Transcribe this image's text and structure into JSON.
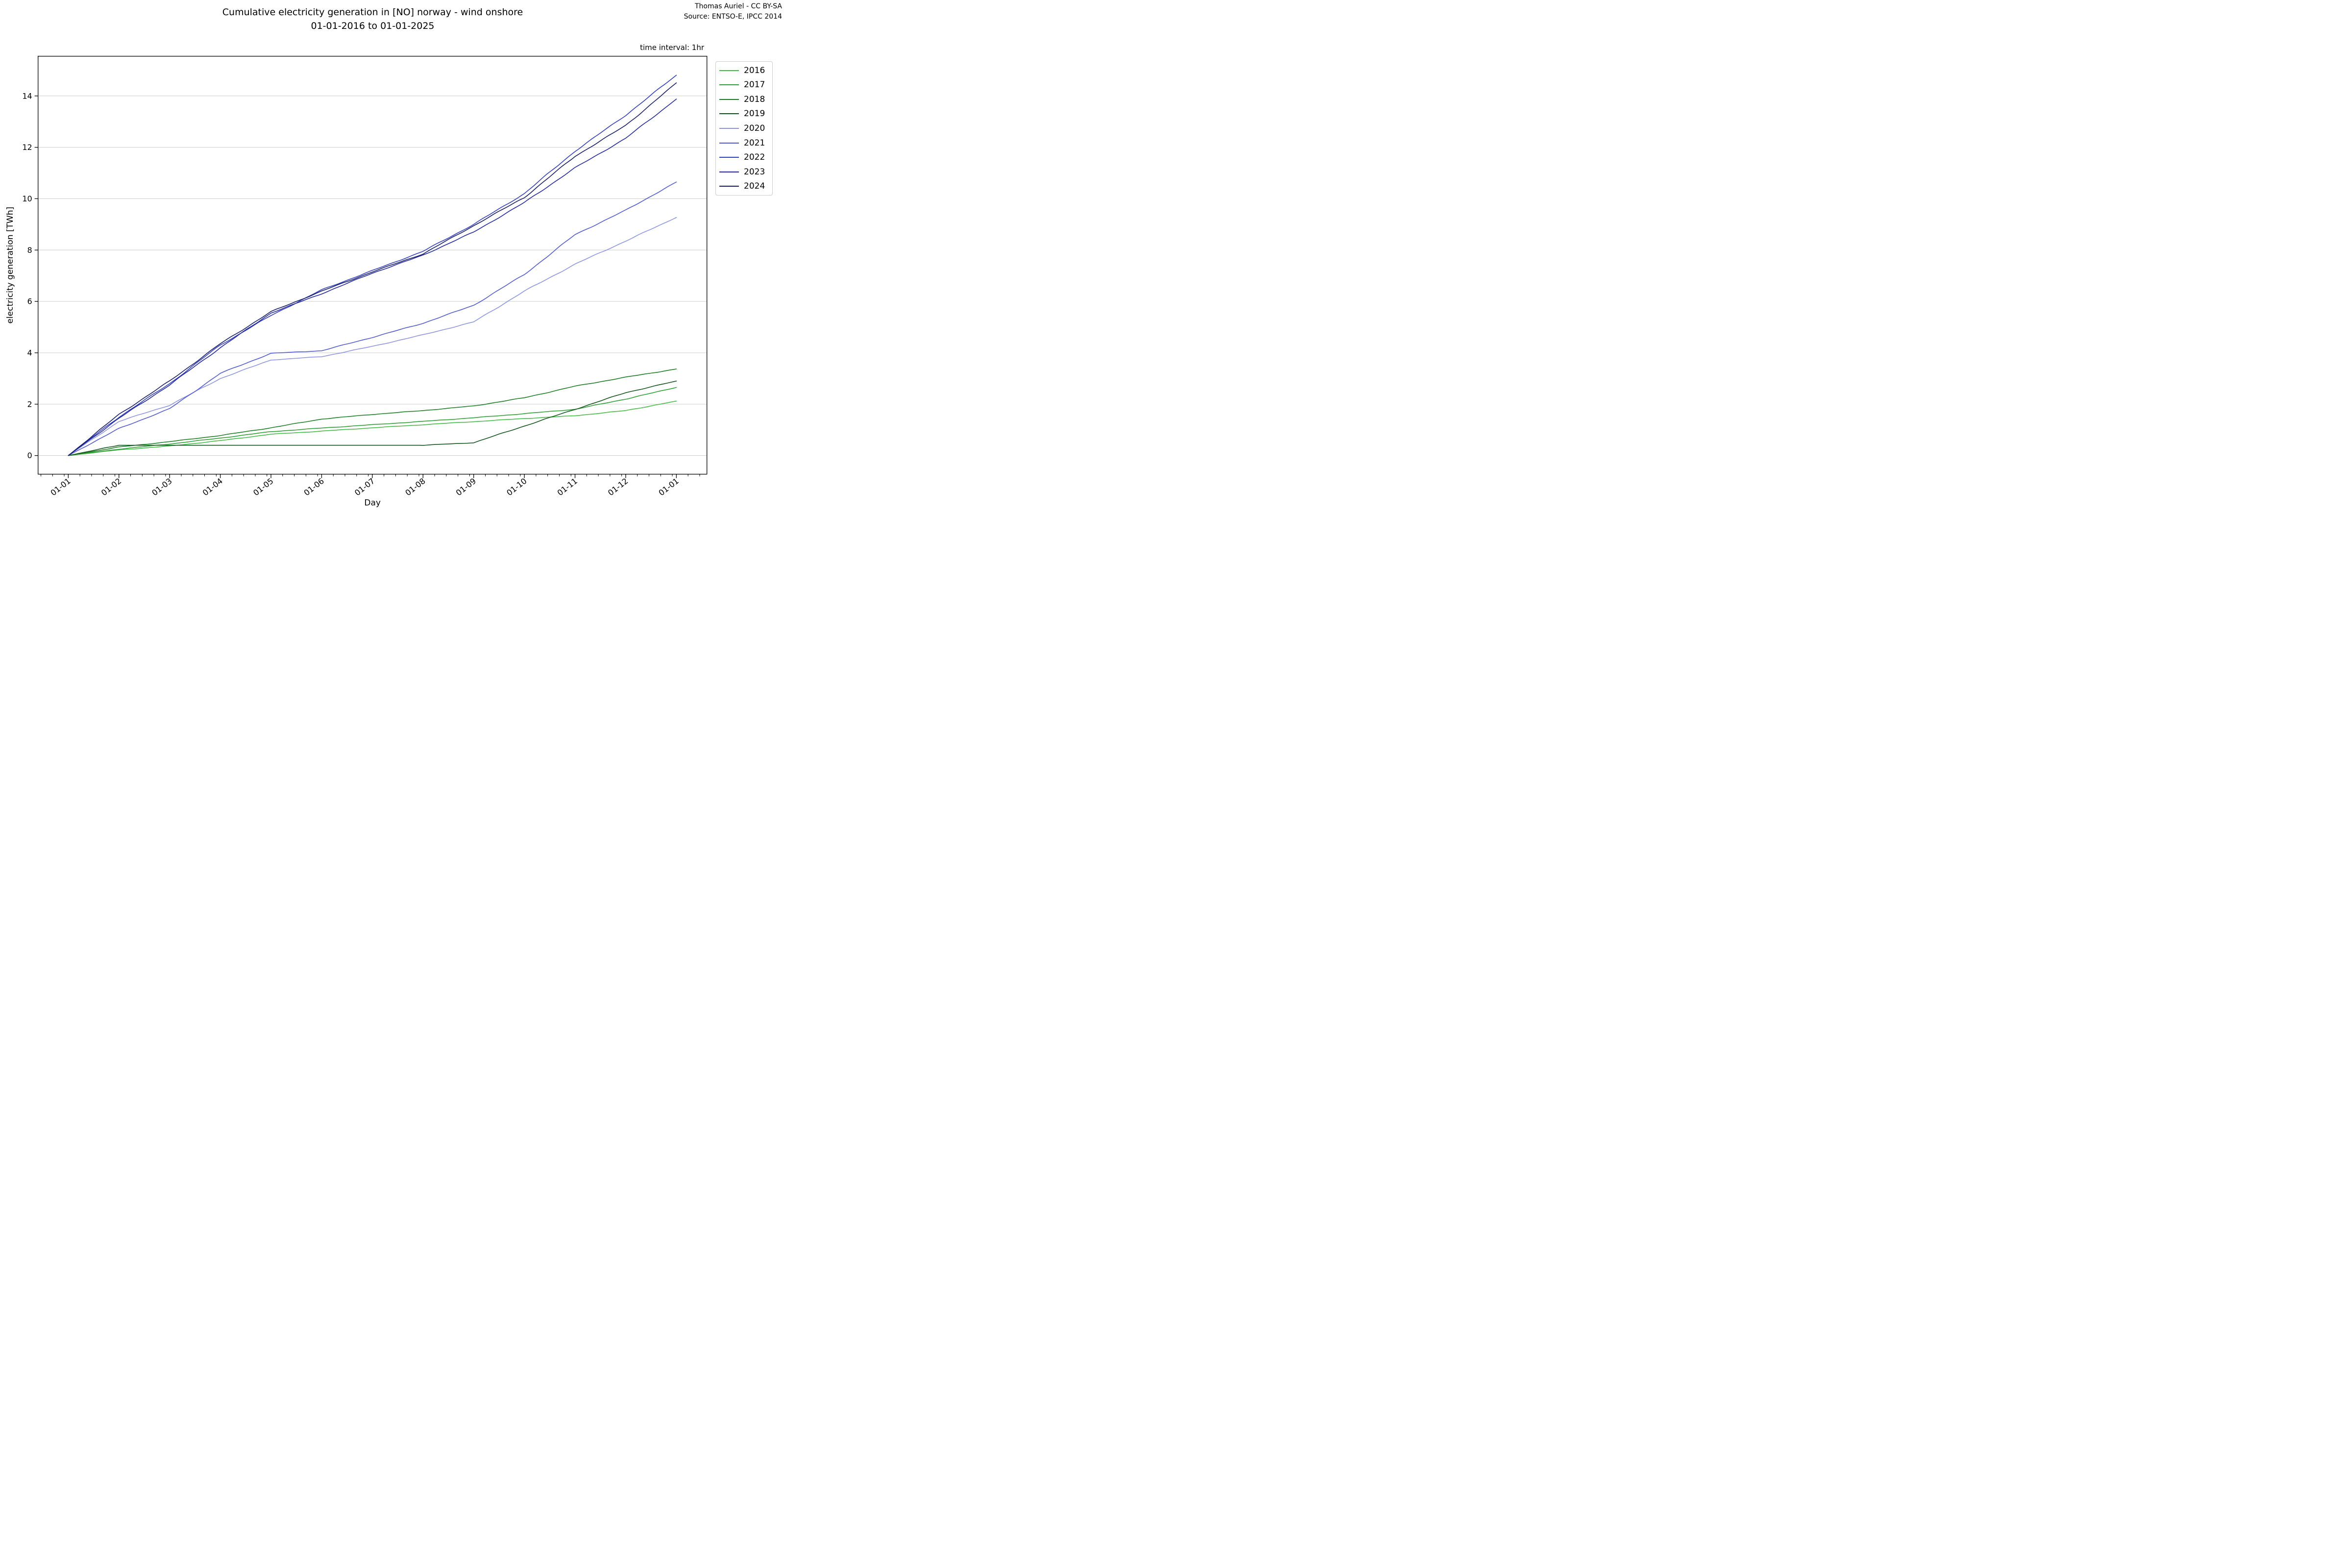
{
  "header": {
    "title_line1": "Cumulative electricity generation in [NO] norway - wind onshore",
    "title_line2": "01-01-2016 to 01-01-2025",
    "attribution_line1": "Thomas Auriel - CC BY-SA",
    "attribution_line2": "Source: ENTSO-E, IPCC 2014",
    "time_interval_note": "time interval: 1hr"
  },
  "chart_data": {
    "type": "line",
    "title": "Cumulative electricity generation in [NO] norway - wind onshore 01-01-2016 to 01-01-2025",
    "xlabel": "Day",
    "ylabel": "electricity generation [TWh]",
    "x_tick_labels": [
      "01-01",
      "01-02",
      "01-03",
      "01-04",
      "01-05",
      "01-06",
      "01-07",
      "01-08",
      "01-09",
      "01-10",
      "01-11",
      "01-12",
      "01-01"
    ],
    "y_ticks": [
      0,
      2,
      4,
      6,
      8,
      10,
      12,
      14
    ],
    "ylim": [
      -0.73,
      15.55
    ],
    "grid": "horizontal",
    "legend_position": "outside upper right",
    "sample_note": "monthly cumulative values in TWh at each x tick (Jan 1 of year through Jan 1 of next year)",
    "series": [
      {
        "name": "2016",
        "color": "#44bb44",
        "monthly_values_twh": [
          0,
          0.22,
          0.37,
          0.58,
          0.83,
          0.95,
          1.08,
          1.2,
          1.32,
          1.44,
          1.55,
          1.75,
          2.12
        ]
      },
      {
        "name": "2017",
        "color": "#2f9e36",
        "monthly_values_twh": [
          0,
          0.25,
          0.45,
          0.68,
          0.93,
          1.07,
          1.2,
          1.33,
          1.47,
          1.63,
          1.8,
          2.2,
          2.65
        ]
      },
      {
        "name": "2018",
        "color": "#1e7d26",
        "monthly_values_twh": [
          0,
          0.33,
          0.54,
          0.78,
          1.08,
          1.42,
          1.6,
          1.75,
          1.93,
          2.25,
          2.7,
          3.05,
          3.37
        ]
      },
      {
        "name": "2019",
        "color": "#14541c",
        "monthly_values_twh": [
          0,
          0.4,
          0.4,
          0.4,
          0.4,
          0.4,
          0.4,
          0.4,
          0.5,
          1.15,
          1.8,
          2.45,
          2.9
        ]
      },
      {
        "name": "2020",
        "color": "#8d96dd",
        "monthly_values_twh": [
          0,
          1.33,
          1.96,
          3.0,
          3.72,
          3.85,
          4.25,
          4.7,
          5.2,
          6.4,
          7.45,
          8.35,
          9.27
        ]
      },
      {
        "name": "2021",
        "color": "#515bcd",
        "monthly_values_twh": [
          0,
          1.05,
          1.82,
          3.2,
          3.98,
          4.08,
          4.6,
          5.15,
          5.85,
          7.05,
          8.6,
          9.55,
          10.65
        ]
      },
      {
        "name": "2022",
        "color": "#333fb8",
        "monthly_values_twh": [
          0,
          1.5,
          2.8,
          4.3,
          5.45,
          6.45,
          7.2,
          7.95,
          9.0,
          10.2,
          11.85,
          13.25,
          14.81
        ]
      },
      {
        "name": "2023",
        "color": "#23289e",
        "monthly_values_twh": [
          0,
          1.45,
          2.75,
          4.2,
          5.55,
          6.3,
          7.1,
          7.8,
          8.7,
          9.85,
          11.2,
          12.35,
          13.88
        ]
      },
      {
        "name": "2024",
        "color": "#171c66",
        "monthly_values_twh": [
          0,
          1.6,
          2.9,
          4.35,
          5.6,
          6.4,
          7.15,
          7.85,
          8.95,
          10.05,
          11.65,
          12.85,
          14.51
        ]
      }
    ],
    "axis_colors": {
      "spine": "#000000",
      "grid": "#cccccc",
      "text": "#000000"
    }
  }
}
